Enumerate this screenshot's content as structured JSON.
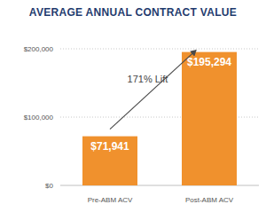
{
  "chart_data": {
    "type": "bar",
    "title": "AVERAGE ANNUAL CONTRACT VALUE",
    "annotation": "171% Lift",
    "categories": [
      "Pre-ABM ACV",
      "Post-ABM ACV"
    ],
    "values": [
      71941,
      195294
    ],
    "value_labels": [
      "$71,941",
      "$195,294"
    ],
    "color": "#f0912d",
    "ylim": [
      0,
      200000
    ],
    "yticks": [
      {
        "value": 0,
        "label": "$0"
      },
      {
        "value": 100000,
        "label": "$100,000"
      },
      {
        "value": 200000,
        "label": "$200,000"
      }
    ],
    "grid": true,
    "data_labels": true
  }
}
